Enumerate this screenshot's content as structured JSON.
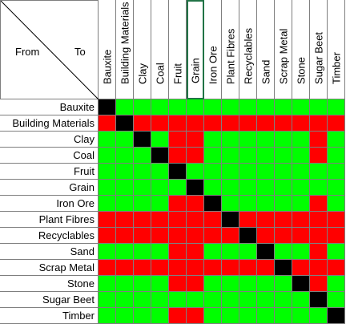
{
  "corner": {
    "from": "From",
    "to": "To"
  },
  "columns": [
    "Bauxite",
    "Building Materials",
    "Clay",
    "Coal",
    "Fruit",
    "Grain",
    "Iron Ore",
    "Plant Fibres",
    "Recyclables",
    "Sand",
    "Scrap Metal",
    "Stone",
    "Sugar Beet",
    "Timber"
  ],
  "rows": [
    "Bauxite",
    "Building Materials",
    "Clay",
    "Coal",
    "Fruit",
    "Grain",
    "Iron Ore",
    "Plant Fibres",
    "Recyclables",
    "Sand",
    "Scrap Metal",
    "Stone",
    "Sugar Beet",
    "Timber"
  ],
  "selected_column": "Grain",
  "colors": {
    "green": "#00ff00",
    "red": "#ff0000",
    "black": "#000000"
  },
  "matrix_legend": {
    "G": "green",
    "R": "red",
    "X": "black"
  },
  "matrix": [
    "XGGGGGGGGGGGGG",
    "RXRRRRRRRRRRRR",
    "GGXGRRGGGGGGRG",
    "GGGXRRGGGGGGRG",
    "GGGGXGGGGGGGGG",
    "GGGGGXGGGGGGGG",
    "GGGGRRXGGGGGRG",
    "RRRRRRRXRRRRRR",
    "RRRRRRRRXRRRRR",
    "GGGGRRGGGXGGRG",
    "RRRRRRRRRRXRRR",
    "GGGGRRGGGGGXRG",
    "GGGGGGGGGGGGXG",
    "GGGGRRGGGGGGGX"
  ]
}
